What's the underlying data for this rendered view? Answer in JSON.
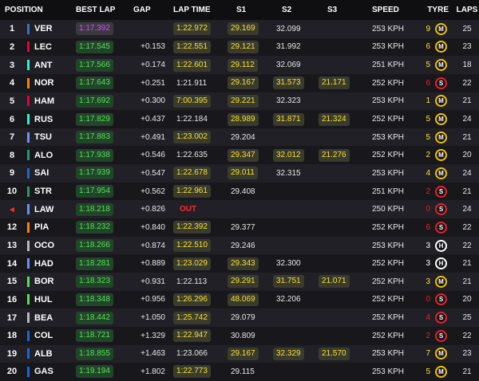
{
  "header": {
    "position": "POSITION",
    "best_lap": "BEST LAP",
    "gap": "GAP",
    "lap_time": "LAP TIME",
    "s1": "S1",
    "s2": "S2",
    "s3": "S3",
    "speed": "SPEED",
    "tyre": "TYRE",
    "laps": "LAPS"
  },
  "colors": {
    "purple": "#d44cff",
    "green": "#55e055",
    "yellow": "#f2e332",
    "soft": "#e8202a",
    "medium": "#f2c200",
    "hard": "#ffffff",
    "out": "#ff2a2a"
  },
  "rows": [
    {
      "pos": "1",
      "team_color": "#3671c6",
      "driver": "VER",
      "best": "1:17.392",
      "best_c": "purple",
      "gap": "",
      "lap": "1:22.972",
      "lap_c": "yellow",
      "s1": "29.169",
      "s1_c": "yellow",
      "s2": "32.099",
      "s2_c": "plain",
      "s3": "",
      "s3_c": "plain",
      "speed": "253 KPH",
      "age": "9",
      "age_c": "yellow",
      "tyre": "M",
      "laps": "25"
    },
    {
      "pos": "2",
      "team_color": "#e8002d",
      "driver": "LEC",
      "best": "1:17.545",
      "best_c": "green",
      "gap": "+0.153",
      "lap": "1:22.551",
      "lap_c": "yellow",
      "s1": "29.121",
      "s1_c": "yellow",
      "s2": "31.992",
      "s2_c": "plain",
      "s3": "",
      "s3_c": "plain",
      "speed": "253 KPH",
      "age": "6",
      "age_c": "yellow",
      "tyre": "M",
      "laps": "23"
    },
    {
      "pos": "3",
      "team_color": "#27f4d2",
      "driver": "ANT",
      "best": "1:17.566",
      "best_c": "green",
      "gap": "+0.174",
      "lap": "1:22.601",
      "lap_c": "yellow",
      "s1": "29.112",
      "s1_c": "yellow",
      "s2": "32.069",
      "s2_c": "plain",
      "s3": "",
      "s3_c": "plain",
      "speed": "251 KPH",
      "age": "5",
      "age_c": "yellow",
      "tyre": "M",
      "laps": "18"
    },
    {
      "pos": "4",
      "team_color": "#ff8000",
      "driver": "NOR",
      "best": "1:17.643",
      "best_c": "green",
      "gap": "+0.251",
      "lap": "1:21.911",
      "lap_c": "plain",
      "s1": "29.167",
      "s1_c": "yellow",
      "s2": "31.573",
      "s2_c": "yellow",
      "s3": "21.171",
      "s3_c": "yellow",
      "speed": "252 KPH",
      "age": "6",
      "age_c": "red",
      "tyre": "S",
      "laps": "22"
    },
    {
      "pos": "5",
      "team_color": "#e8002d",
      "driver": "HAM",
      "best": "1:17.692",
      "best_c": "green",
      "gap": "+0.300",
      "lap": "7:00.395",
      "lap_c": "yellow",
      "s1": "29.221",
      "s1_c": "yellow",
      "s2": "32.323",
      "s2_c": "plain",
      "s3": "",
      "s3_c": "plain",
      "speed": "253 KPH",
      "age": "1",
      "age_c": "yellow",
      "tyre": "M",
      "laps": "21"
    },
    {
      "pos": "6",
      "team_color": "#27f4d2",
      "driver": "RUS",
      "best": "1:17.829",
      "best_c": "green",
      "gap": "+0.437",
      "lap": "1:22.184",
      "lap_c": "plain",
      "s1": "28.989",
      "s1_c": "yellow",
      "s2": "31.871",
      "s2_c": "yellow",
      "s3": "21.324",
      "s3_c": "yellow",
      "speed": "252 KPH",
      "age": "5",
      "age_c": "yellow",
      "tyre": "M",
      "laps": "24"
    },
    {
      "pos": "7",
      "team_color": "#6692ff",
      "driver": "TSU",
      "best": "1:17.883",
      "best_c": "green",
      "gap": "+0.491",
      "lap": "1:23.002",
      "lap_c": "yellow",
      "s1": "29.204",
      "s1_c": "plain",
      "s2": "",
      "s2_c": "plain",
      "s3": "",
      "s3_c": "plain",
      "speed": "253 KPH",
      "age": "5",
      "age_c": "yellow",
      "tyre": "M",
      "laps": "21"
    },
    {
      "pos": "8",
      "team_color": "#229971",
      "driver": "ALO",
      "best": "1:17.938",
      "best_c": "green",
      "gap": "+0.546",
      "lap": "1:22.635",
      "lap_c": "plain",
      "s1": "29.347",
      "s1_c": "yellow",
      "s2": "32.012",
      "s2_c": "yellow",
      "s3": "21.276",
      "s3_c": "yellow",
      "speed": "252 KPH",
      "age": "2",
      "age_c": "yellow",
      "tyre": "M",
      "laps": "20"
    },
    {
      "pos": "9",
      "team_color": "#1868db",
      "driver": "SAI",
      "best": "1:17.939",
      "best_c": "green",
      "gap": "+0.547",
      "lap": "1:22.678",
      "lap_c": "yellow",
      "s1": "29.011",
      "s1_c": "yellow",
      "s2": "32.315",
      "s2_c": "plain",
      "s3": "",
      "s3_c": "plain",
      "speed": "253 KPH",
      "age": "4",
      "age_c": "yellow",
      "tyre": "M",
      "laps": "24"
    },
    {
      "pos": "10",
      "team_color": "#229971",
      "driver": "STR",
      "best": "1:17.954",
      "best_c": "green",
      "gap": "+0.562",
      "lap": "1:22.961",
      "lap_c": "yellow",
      "s1": "29.408",
      "s1_c": "plain",
      "s2": "",
      "s2_c": "plain",
      "s3": "",
      "s3_c": "plain",
      "speed": "251 KPH",
      "age": "2",
      "age_c": "red",
      "tyre": "S",
      "laps": "21"
    },
    {
      "pos": "",
      "pos_icon": "◂",
      "team_color": "#6692ff",
      "driver": "LAW",
      "best": "1:18.218",
      "best_c": "green",
      "gap": "+0.826",
      "lap": "OUT",
      "lap_c": "out",
      "s1": "",
      "s1_c": "plain",
      "s2": "",
      "s2_c": "plain",
      "s3": "",
      "s3_c": "plain",
      "speed": "250 KPH",
      "age": "0",
      "age_c": "red",
      "tyre": "S",
      "laps": "24"
    },
    {
      "pos": "12",
      "team_color": "#ff8000",
      "driver": "PIA",
      "best": "1:18.232",
      "best_c": "green",
      "gap": "+0.840",
      "lap": "1:22.392",
      "lap_c": "yellow",
      "s1": "29.377",
      "s1_c": "plain",
      "s2": "",
      "s2_c": "plain",
      "s3": "",
      "s3_c": "plain",
      "speed": "252 KPH",
      "age": "6",
      "age_c": "red",
      "tyre": "S",
      "laps": "22"
    },
    {
      "pos": "13",
      "team_color": "#b6babd",
      "driver": "OCO",
      "best": "1:18.266",
      "best_c": "green",
      "gap": "+0.874",
      "lap": "1:22.510",
      "lap_c": "yellow",
      "s1": "29.246",
      "s1_c": "plain",
      "s2": "",
      "s2_c": "plain",
      "s3": "",
      "s3_c": "plain",
      "speed": "253 KPH",
      "age": "3",
      "age_c": "white",
      "tyre": "H",
      "laps": "22"
    },
    {
      "pos": "14",
      "team_color": "#6692ff",
      "driver": "HAD",
      "best": "1:18.281",
      "best_c": "green",
      "gap": "+0.889",
      "lap": "1:23.029",
      "lap_c": "yellow",
      "s1": "29.343",
      "s1_c": "yellow",
      "s2": "32.300",
      "s2_c": "plain",
      "s3": "",
      "s3_c": "plain",
      "speed": "252 KPH",
      "age": "3",
      "age_c": "white",
      "tyre": "H",
      "laps": "21"
    },
    {
      "pos": "15",
      "team_color": "#52e252",
      "driver": "BOR",
      "best": "1:18.323",
      "best_c": "green",
      "gap": "+0.931",
      "lap": "1:22.113",
      "lap_c": "plain",
      "s1": "29.291",
      "s1_c": "yellow",
      "s2": "31.751",
      "s2_c": "yellow",
      "s3": "21.071",
      "s3_c": "yellow",
      "speed": "252 KPH",
      "age": "3",
      "age_c": "yellow",
      "tyre": "M",
      "laps": "21"
    },
    {
      "pos": "16",
      "team_color": "#52e252",
      "driver": "HUL",
      "best": "1:18.348",
      "best_c": "green",
      "gap": "+0.956",
      "lap": "1:26.296",
      "lap_c": "yellow",
      "s1": "48.069",
      "s1_c": "yellow",
      "s2": "32.206",
      "s2_c": "plain",
      "s3": "",
      "s3_c": "plain",
      "speed": "252 KPH",
      "age": "0",
      "age_c": "red",
      "tyre": "S",
      "laps": "20"
    },
    {
      "pos": "17",
      "team_color": "#b6babd",
      "driver": "BEA",
      "best": "1:18.442",
      "best_c": "green",
      "gap": "+1.050",
      "lap": "1:25.742",
      "lap_c": "yellow",
      "s1": "29.079",
      "s1_c": "plain",
      "s2": "",
      "s2_c": "plain",
      "s3": "",
      "s3_c": "plain",
      "speed": "252 KPH",
      "age": "4",
      "age_c": "red",
      "tyre": "S",
      "laps": "25"
    },
    {
      "pos": "18",
      "team_color": "#1868db",
      "driver": "COL",
      "best": "1:18.721",
      "best_c": "green",
      "gap": "+1.329",
      "lap": "1:22.947",
      "lap_c": "yellow",
      "s1": "30.809",
      "s1_c": "plain",
      "s2": "",
      "s2_c": "plain",
      "s3": "",
      "s3_c": "plain",
      "speed": "252 KPH",
      "age": "2",
      "age_c": "red",
      "tyre": "S",
      "laps": "22"
    },
    {
      "pos": "19",
      "team_color": "#1868db",
      "driver": "ALB",
      "best": "1:18.855",
      "best_c": "green",
      "gap": "+1.463",
      "lap": "1:23.066",
      "lap_c": "plain",
      "s1": "29.167",
      "s1_c": "yellow",
      "s2": "32.329",
      "s2_c": "yellow",
      "s3": "21.570",
      "s3_c": "yellow",
      "speed": "253 KPH",
      "age": "7",
      "age_c": "yellow",
      "tyre": "M",
      "laps": "23"
    },
    {
      "pos": "20",
      "team_color": "#1868db",
      "driver": "GAS",
      "best": "1:19.194",
      "best_c": "green",
      "gap": "+1.802",
      "lap": "1:22.773",
      "lap_c": "yellow",
      "s1": "29.115",
      "s1_c": "plain",
      "s2": "",
      "s2_c": "plain",
      "s3": "",
      "s3_c": "plain",
      "speed": "253 KPH",
      "age": "5",
      "age_c": "yellow",
      "tyre": "M",
      "laps": "21"
    }
  ]
}
